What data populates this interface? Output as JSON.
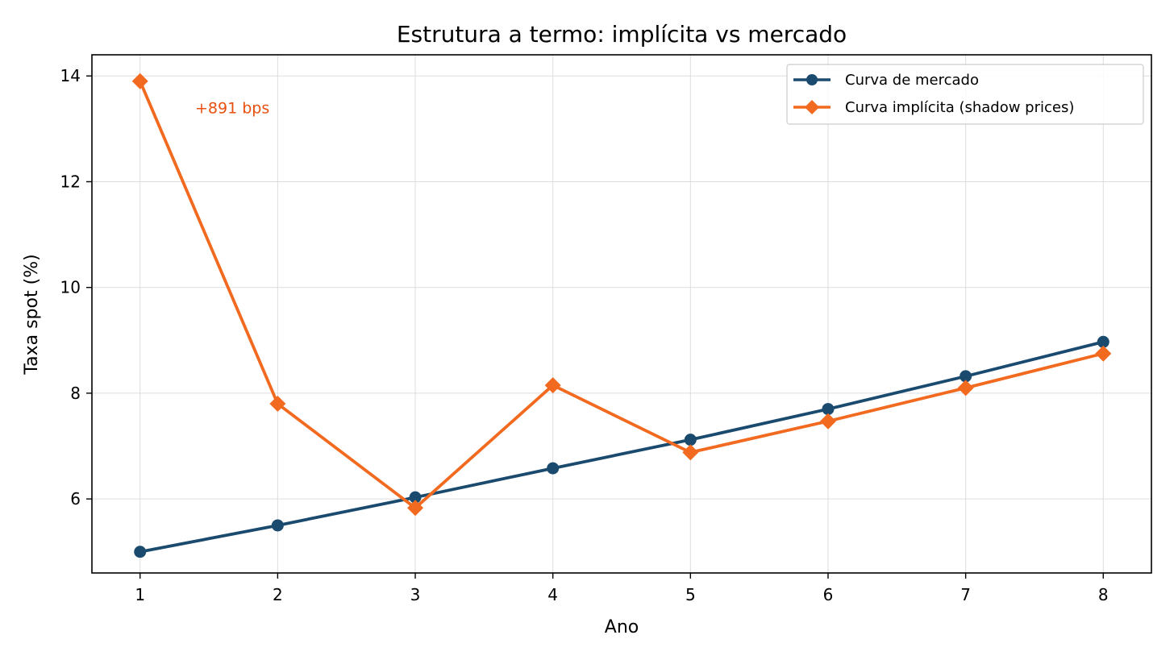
{
  "chart_data": {
    "type": "line",
    "title": "Estrutura a termo: implícita vs mercado",
    "xlabel": "Ano",
    "ylabel": "Taxa spot (%)",
    "x": [
      1,
      2,
      3,
      4,
      5,
      6,
      7,
      8
    ],
    "xlim": [
      0.65,
      8.35
    ],
    "ylim": [
      4.6,
      14.4
    ],
    "xticks": [
      1,
      2,
      3,
      4,
      5,
      6,
      7,
      8
    ],
    "yticks": [
      6,
      8,
      10,
      12,
      14
    ],
    "grid": true,
    "legend_position": "upper-right",
    "series": [
      {
        "name": "Curva de mercado",
        "color": "#1a4a6e",
        "marker": "circle",
        "values": [
          5.0,
          5.5,
          6.03,
          6.58,
          7.12,
          7.7,
          8.32,
          8.97
        ]
      },
      {
        "name": "Curva implícita (shadow prices)",
        "color": "#f26a1f",
        "marker": "diamond",
        "values": [
          13.9,
          7.8,
          5.83,
          8.15,
          6.88,
          7.47,
          8.1,
          8.75
        ]
      }
    ],
    "annotation": {
      "text": "+891 bps",
      "x": 1.4,
      "y": 13.4,
      "color": "#e8500f"
    }
  }
}
